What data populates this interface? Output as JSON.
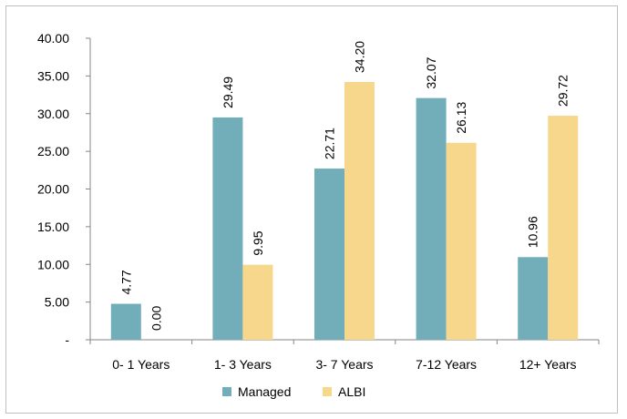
{
  "chart_data": {
    "type": "bar",
    "title": "",
    "xlabel": "",
    "ylabel": "",
    "categories": [
      "0- 1 Years",
      "1- 3 Years",
      "3- 7 Years",
      "7-12 Years",
      "12+ Years"
    ],
    "series": [
      {
        "name": "Managed",
        "color": "#71AEBA",
        "values": [
          4.77,
          29.49,
          22.71,
          32.07,
          10.96
        ],
        "labels": [
          "4.77",
          "29.49",
          "22.71",
          "32.07",
          "10.96"
        ]
      },
      {
        "name": "ALBI",
        "color": "#F6D78B",
        "values": [
          0.0,
          9.95,
          34.2,
          26.13,
          29.72
        ],
        "labels": [
          "0.00",
          "9.95",
          "34.20",
          "26.13",
          "29.72"
        ]
      }
    ],
    "ylim": [
      0,
      40
    ],
    "y_ticks": [
      0,
      5,
      10,
      15,
      20,
      25,
      30,
      35,
      40
    ],
    "y_tick_labels": [
      "-",
      "5.00",
      "10.00",
      "15.00",
      "20.00",
      "25.00",
      "30.00",
      "35.00",
      "40.00"
    ],
    "grid": false,
    "legend_position": "bottom"
  }
}
